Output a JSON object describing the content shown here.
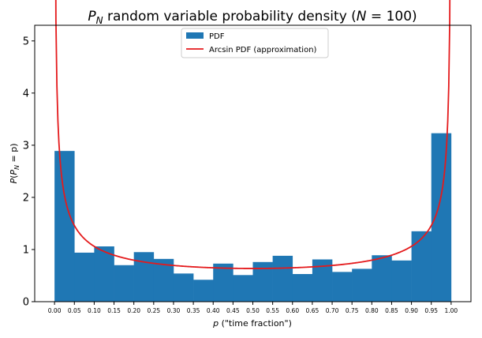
{
  "chart_data": {
    "type": "bar",
    "title_main": "P",
    "title_sub": "N",
    "title_rest": " random variable probability density (",
    "title_n": "N",
    "title_eq": " = 100)",
    "xlabel_var": "p",
    "xlabel_rest": " (\"time fraction\")",
    "ylabel_p": "P",
    "ylabel_open": "(",
    "ylabel_var": "P",
    "ylabel_sub": "N",
    "ylabel_rest": " = p)",
    "xlim": [
      -0.05,
      1.05
    ],
    "ylim": [
      0,
      5.3
    ],
    "bin_edges": [
      0.0,
      0.05,
      0.1,
      0.15,
      0.2,
      0.25,
      0.3,
      0.35,
      0.4,
      0.45,
      0.5,
      0.55,
      0.6,
      0.65,
      0.7,
      0.75,
      0.8,
      0.85,
      0.9,
      0.95,
      1.0
    ],
    "values": [
      2.89,
      0.94,
      1.06,
      0.7,
      0.95,
      0.82,
      0.54,
      0.42,
      0.73,
      0.51,
      0.76,
      0.88,
      0.53,
      0.81,
      0.57,
      0.63,
      0.89,
      0.79,
      1.35,
      3.23
    ],
    "x_tick_labels": [
      "0.00",
      "0.05",
      "0.10",
      "0.15",
      "0.20",
      "0.25",
      "0.30",
      "0.35",
      "0.40",
      "0.45",
      "0.50",
      "0.55",
      "0.60",
      "0.65",
      "0.70",
      "0.75",
      "0.80",
      "0.85",
      "0.90",
      "0.95",
      "1.00"
    ],
    "y_ticks": [
      0,
      1,
      2,
      3,
      4,
      5
    ],
    "y_tick_labels": [
      "0",
      "1",
      "2",
      "3",
      "4",
      "5"
    ],
    "series": [
      {
        "name": "PDF",
        "kind": "histogram",
        "color": "#1f77b4"
      },
      {
        "name": "Arcsin PDF (approximation)",
        "kind": "line",
        "color": "#e41a1c",
        "formula": "1/(pi*sqrt(p*(1-p)))"
      }
    ],
    "legend_placement": "top-center",
    "grid": false
  }
}
